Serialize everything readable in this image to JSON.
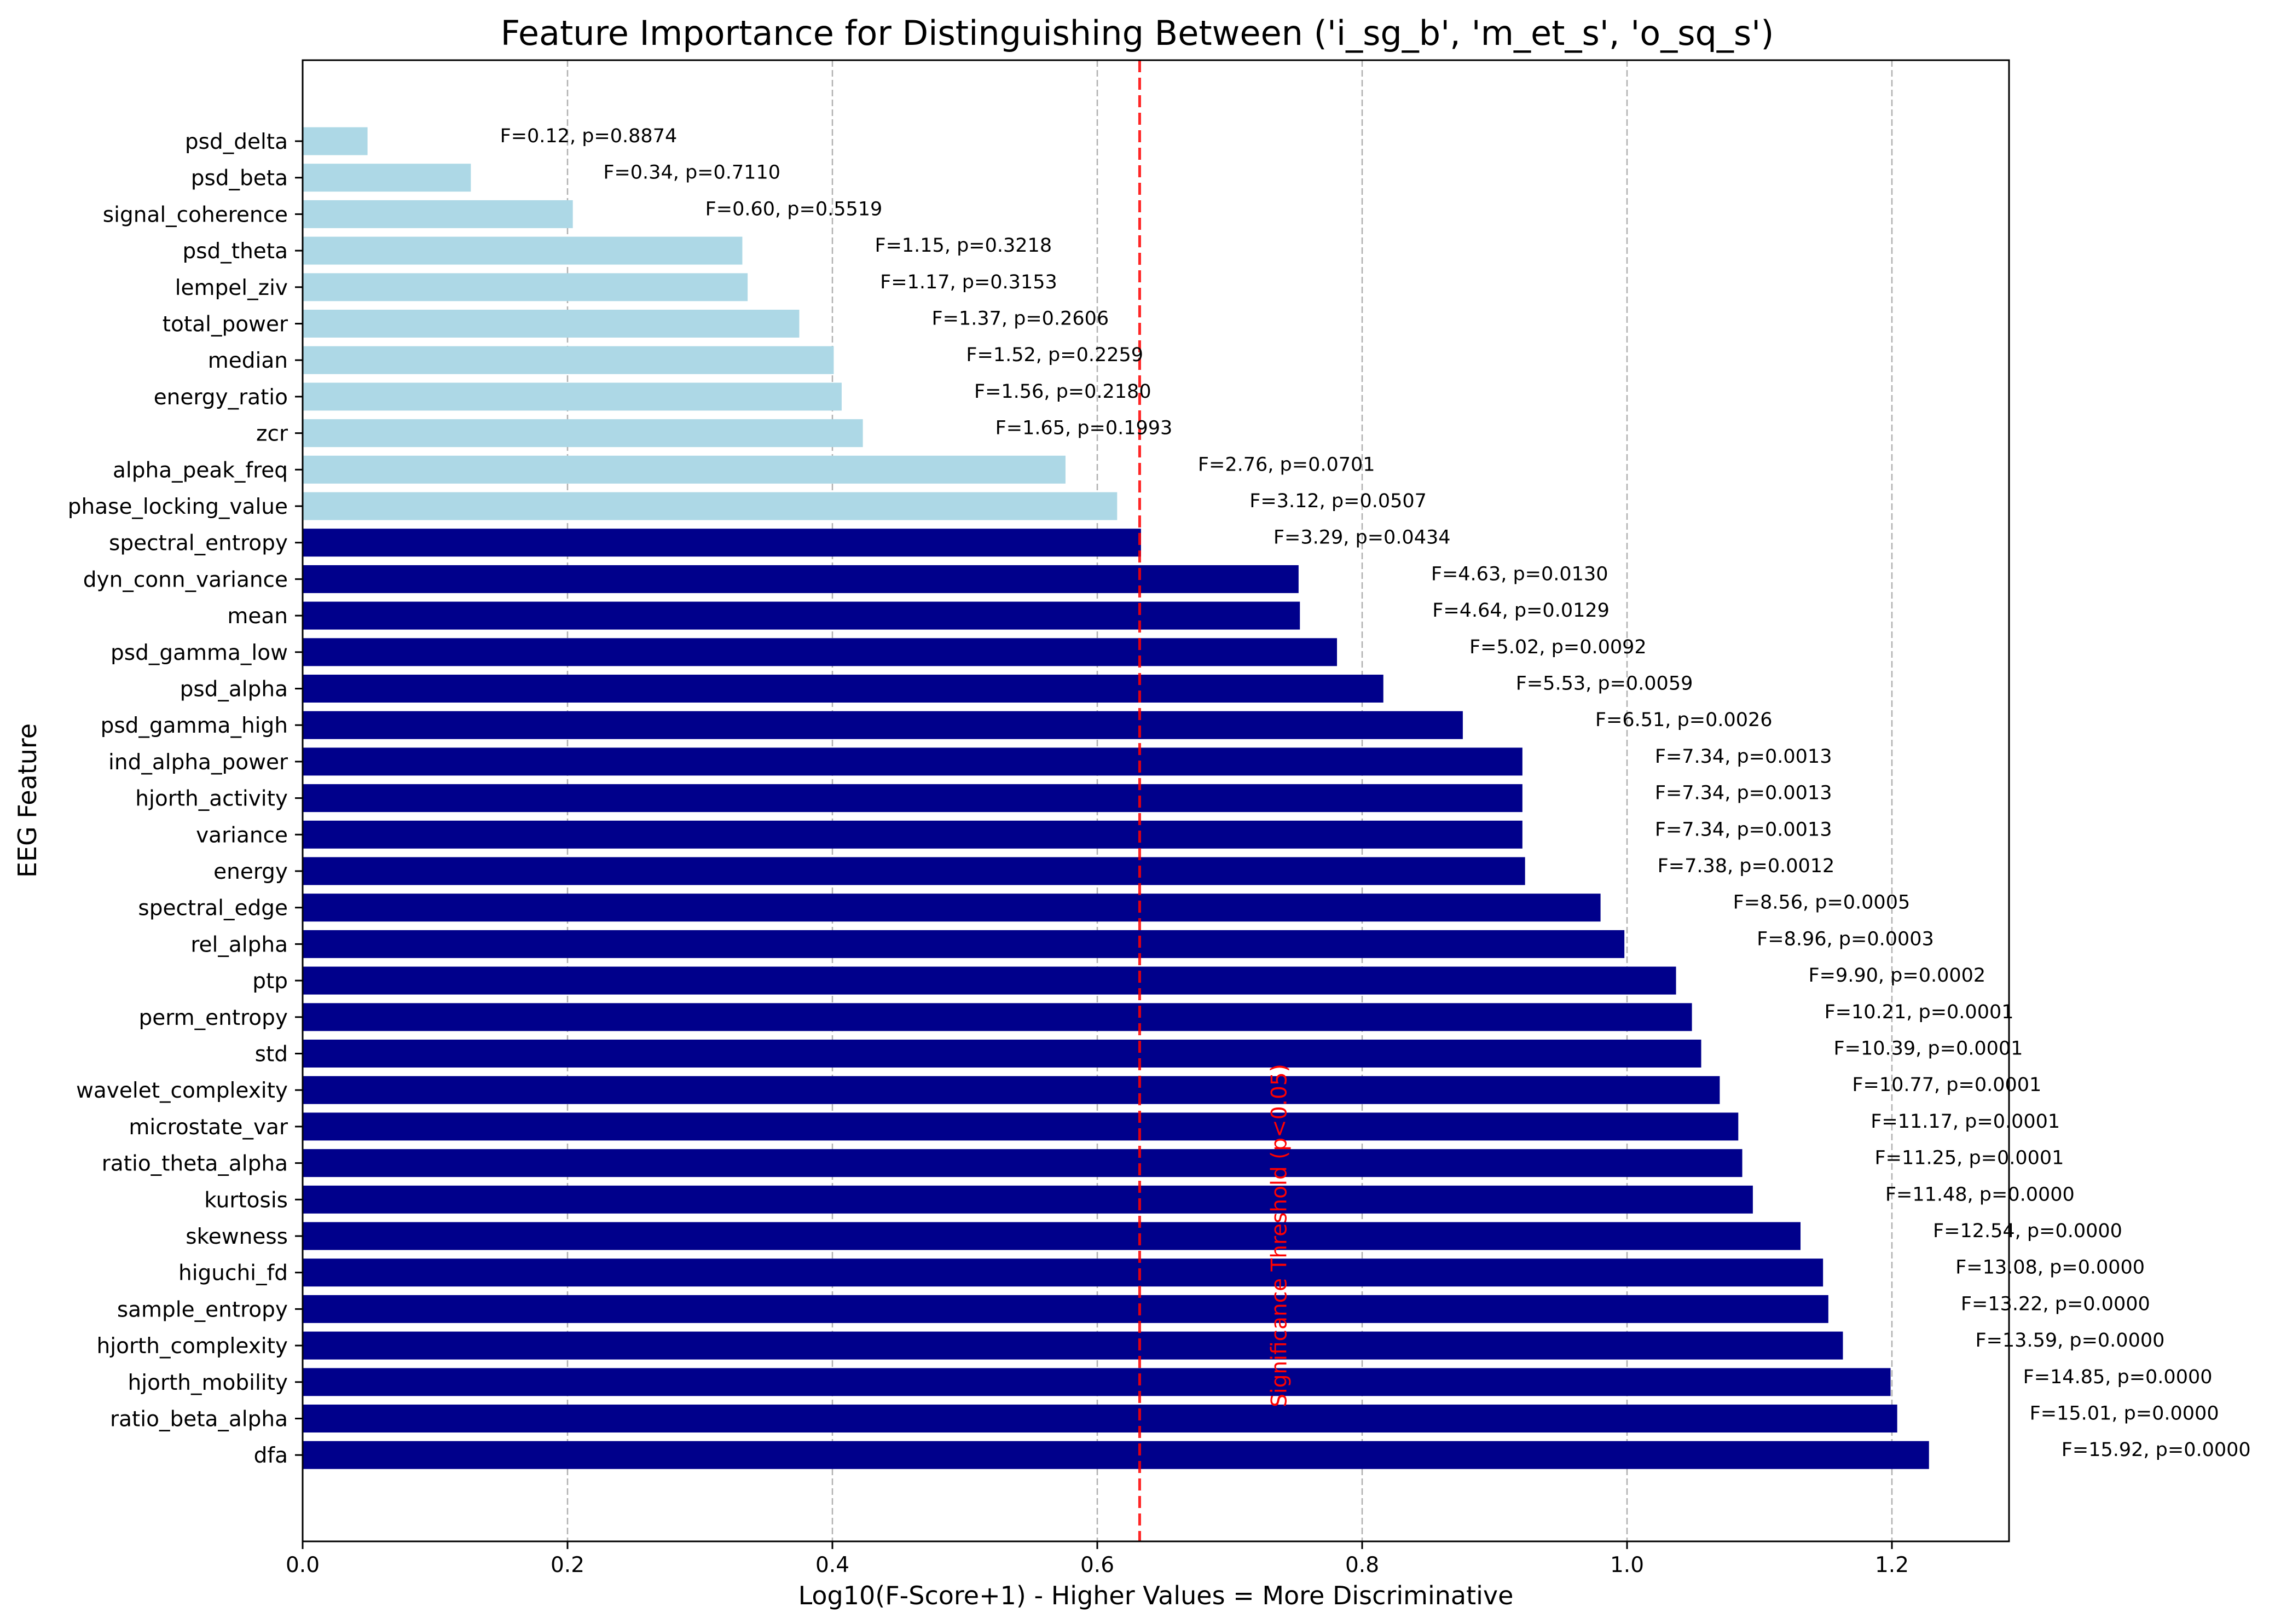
{
  "chart_data": {
    "type": "bar",
    "orientation": "horizontal",
    "title": "Feature Importance for Distinguishing Between ('i_sg_b', 'm_et_s', 'o_sq_s')",
    "xlabel": "Log10(F-Score+1) - Higher Values = More Discriminative",
    "ylabel": "EEG Feature",
    "xlim": [
      0,
      1.29
    ],
    "xticks": [
      "0.0",
      "0.2",
      "0.4",
      "0.6",
      "0.8",
      "1.0",
      "1.2"
    ],
    "xtick_values": [
      0,
      0.2,
      0.4,
      0.6,
      0.8,
      1.0,
      1.2
    ],
    "grid": "x-axis, dashed",
    "colors": {
      "significant": "#00008b",
      "not_significant": "#add8e6",
      "threshold": "#ff0000"
    },
    "threshold": {
      "value": 0.632,
      "label": "Significance Threshold (p<0.05)"
    },
    "categories": [
      "psd_delta",
      "psd_beta",
      "signal_coherence",
      "psd_theta",
      "lempel_ziv",
      "total_power",
      "median",
      "energy_ratio",
      "zcr",
      "alpha_peak_freq",
      "phase_locking_value",
      "spectral_entropy",
      "dyn_conn_variance",
      "mean",
      "psd_gamma_low",
      "psd_alpha",
      "psd_gamma_high",
      "ind_alpha_power",
      "hjorth_activity",
      "variance",
      "energy",
      "spectral_edge",
      "rel_alpha",
      "ptp",
      "perm_entropy",
      "std",
      "wavelet_complexity",
      "microstate_var",
      "ratio_theta_alpha",
      "kurtosis",
      "skewness",
      "higuchi_fd",
      "sample_entropy",
      "hjorth_complexity",
      "hjorth_mobility",
      "ratio_beta_alpha",
      "dfa"
    ],
    "values": [
      0.049,
      0.127,
      0.204,
      0.332,
      0.336,
      0.375,
      0.401,
      0.407,
      0.423,
      0.576,
      0.615,
      0.633,
      0.752,
      0.753,
      0.781,
      0.816,
      0.876,
      0.921,
      0.921,
      0.921,
      0.923,
      0.98,
      0.998,
      1.037,
      1.049,
      1.056,
      1.07,
      1.084,
      1.087,
      1.095,
      1.131,
      1.148,
      1.152,
      1.163,
      1.199,
      1.204,
      1.228
    ],
    "significant": [
      false,
      false,
      false,
      false,
      false,
      false,
      false,
      false,
      false,
      false,
      false,
      true,
      true,
      true,
      true,
      true,
      true,
      true,
      true,
      true,
      true,
      true,
      true,
      true,
      true,
      true,
      true,
      true,
      true,
      true,
      true,
      true,
      true,
      true,
      true,
      true,
      true
    ],
    "labels": [
      "F=0.12, p=0.8874",
      "F=0.34, p=0.7110",
      "F=0.60, p=0.5519",
      "F=1.15, p=0.3218",
      "F=1.17, p=0.3153",
      "F=1.37, p=0.2606",
      "F=1.52, p=0.2259",
      "F=1.56, p=0.2180",
      "F=1.65, p=0.1993",
      "F=2.76, p=0.0701",
      "F=3.12, p=0.0507",
      "F=3.29, p=0.0434",
      "F=4.63, p=0.0130",
      "F=4.64, p=0.0129",
      "F=5.02, p=0.0092",
      "F=5.53, p=0.0059",
      "F=6.51, p=0.0026",
      "F=7.34, p=0.0013",
      "F=7.34, p=0.0013",
      "F=7.34, p=0.0013",
      "F=7.38, p=0.0012",
      "F=8.56, p=0.0005",
      "F=8.96, p=0.0003",
      "F=9.90, p=0.0002",
      "F=10.21, p=0.0001",
      "F=10.39, p=0.0001",
      "F=10.77, p=0.0001",
      "F=11.17, p=0.0001",
      "F=11.25, p=0.0001",
      "F=11.48, p=0.0000",
      "F=12.54, p=0.0000",
      "F=13.08, p=0.0000",
      "F=13.22, p=0.0000",
      "F=13.59, p=0.0000",
      "F=14.85, p=0.0000",
      "F=15.01, p=0.0000",
      "F=15.92, p=0.0000"
    ]
  }
}
